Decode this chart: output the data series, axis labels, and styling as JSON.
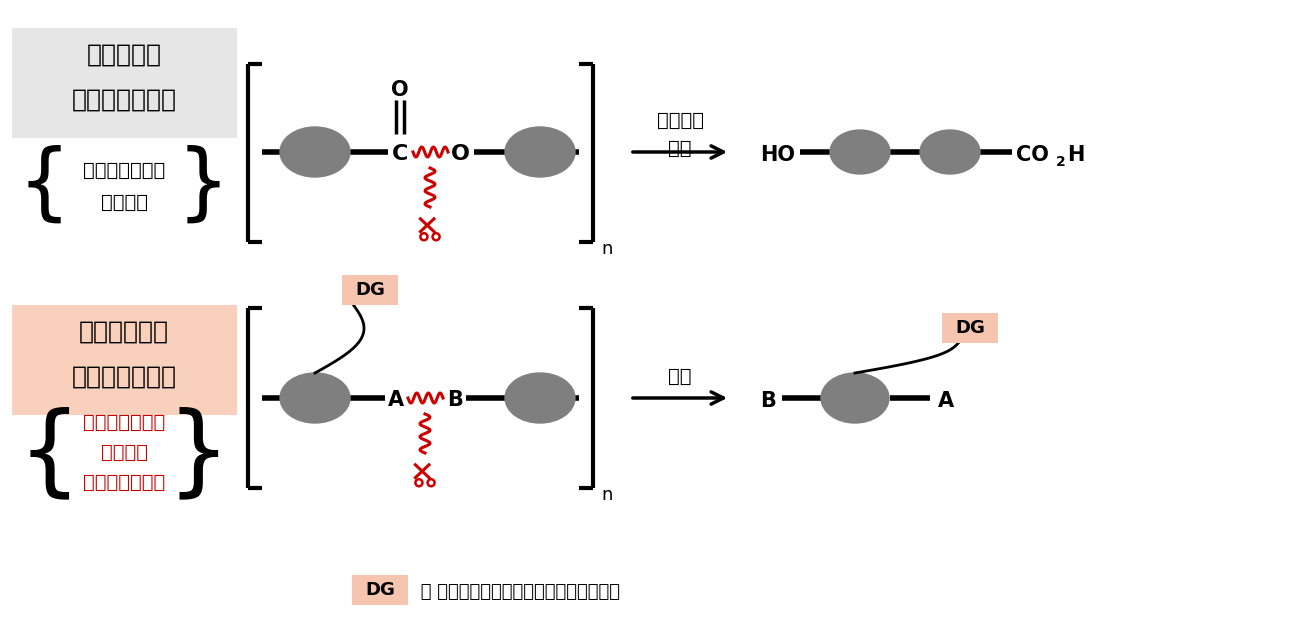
{
  "bg_color": "#ffffff",
  "gray_color": "#7f7f7f",
  "red_color": "#cc0000",
  "salmon_color": "#f5c5b0",
  "light_gray_bg": "#e8e8e8",
  "light_salmon_bg": "#f8d5c5",
  "top_label1": "これまでの",
  "top_label2": "分解性ポリマー",
  "top_sublabel1": "主鎖が弱い結合",
  "top_sublabel2": "からなる",
  "bottom_label1": "今回開発した",
  "bottom_label2": "新しいポリマー",
  "bottom_sublabel1": "主鎖が強い結合",
  "bottom_sublabel2": "からなる",
  "bottom_sublabel3": "高性能ポリマー",
  "top_condition1": "酸または",
  "top_condition2": "塩基",
  "bottom_condition": "触媒",
  "dg_label": "DG",
  "footnote_suffix": " ＝ 配向基：触媒を反応点に近づける役割"
}
